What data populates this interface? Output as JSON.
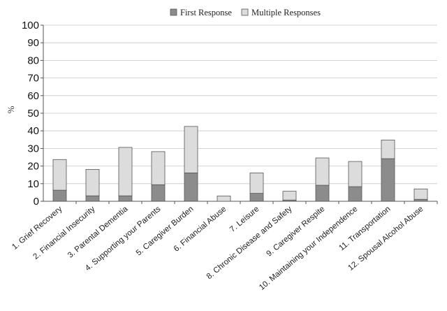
{
  "chart_data": {
    "type": "bar",
    "stacked": true,
    "title": "",
    "xlabel": "",
    "ylabel": "%",
    "ylim": [
      0,
      100
    ],
    "yticks": [
      0,
      10,
      20,
      30,
      40,
      50,
      60,
      70,
      80,
      90,
      100
    ],
    "grid": "horizontal",
    "legend_position": "top",
    "categories": [
      "1. Grief Recovery",
      "2. Financial Insecurity",
      "3. Parental Dementia",
      "4. Supporting your Parents",
      "5. Caregiver Burden",
      "6. Financial Abuse",
      "7. Leisure",
      "8. Chronic Disease and Safety",
      "9. Caregiver Respite",
      "10. Maintaining your Independence",
      "11. Transportation",
      "12. Spousal Alcohol Abuse"
    ],
    "series": [
      {
        "name": "First Response",
        "color": "#8c8c8c",
        "values": [
          6.3,
          3.1,
          3.1,
          9.4,
          16.1,
          0,
          4.5,
          0.7,
          9.1,
          8.3,
          24.2,
          1.1
        ]
      },
      {
        "name": "Multiple Responses",
        "color": "#dcdcdc",
        "values": [
          17.4,
          15.0,
          27.5,
          18.8,
          26.4,
          3.0,
          11.6,
          5.0,
          15.5,
          14.3,
          10.6,
          5.9
        ]
      }
    ]
  }
}
